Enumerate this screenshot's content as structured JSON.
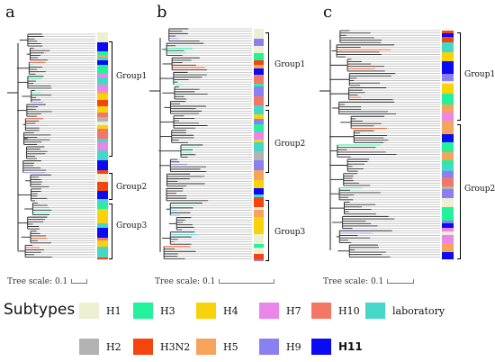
{
  "panels": [
    {
      "letter": "a",
      "groups": [
        "Group1",
        "Group2",
        "Group3"
      ],
      "scale_label": "Tree scale: 0.1"
    },
    {
      "letter": "b",
      "groups": [
        "Group1",
        "Group2",
        "Group3"
      ],
      "scale_label": "Tree scale: 0.1"
    },
    {
      "letter": "c",
      "groups": [
        "Group1",
        "Group2"
      ],
      "scale_label": "Tree scale: 0.1"
    }
  ],
  "legend": {
    "title": "Subtypes",
    "items": [
      {
        "label": "H1",
        "color": "#eeeed2"
      },
      {
        "label": "H3",
        "color": "#22f39a"
      },
      {
        "label": "H4",
        "color": "#f8d20a"
      },
      {
        "label": "H7",
        "color": "#ea86ea"
      },
      {
        "label": "H10",
        "color": "#f47766"
      },
      {
        "label": "laboratory",
        "color": "#45d8c8"
      },
      {
        "label": "H2",
        "color": "#b3b3b3"
      },
      {
        "label": "H3N2",
        "color": "#f5440e"
      },
      {
        "label": "H5",
        "color": "#f7a35c"
      },
      {
        "label": "H9",
        "color": "#8a80f2"
      },
      {
        "label": "H11",
        "color": "#0a0af5"
      }
    ]
  }
}
